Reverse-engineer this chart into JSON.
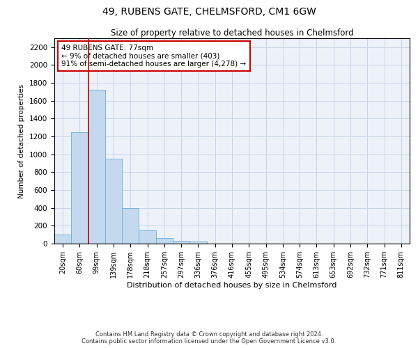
{
  "title_line1": "49, RUBENS GATE, CHELMSFORD, CM1 6GW",
  "title_line2": "Size of property relative to detached houses in Chelmsford",
  "xlabel": "Distribution of detached houses by size in Chelmsford",
  "ylabel": "Number of detached properties",
  "categories": [
    "20sqm",
    "60sqm",
    "99sqm",
    "139sqm",
    "178sqm",
    "218sqm",
    "257sqm",
    "297sqm",
    "336sqm",
    "376sqm",
    "416sqm",
    "455sqm",
    "495sqm",
    "534sqm",
    "574sqm",
    "613sqm",
    "653sqm",
    "692sqm",
    "732sqm",
    "771sqm",
    "811sqm"
  ],
  "values": [
    100,
    1250,
    1720,
    950,
    400,
    150,
    60,
    35,
    20,
    0,
    0,
    0,
    0,
    0,
    0,
    0,
    0,
    0,
    0,
    0,
    0
  ],
  "bar_color": "#c5d9ee",
  "bar_edge_color": "#6aaed6",
  "vline_color": "#cc0000",
  "annotation_text": "49 RUBENS GATE: 77sqm\n← 9% of detached houses are smaller (403)\n91% of semi-detached houses are larger (4,278) →",
  "annotation_box_facecolor": "#ffffff",
  "annotation_box_edgecolor": "#cc0000",
  "ylim": [
    0,
    2300
  ],
  "yticks": [
    0,
    200,
    400,
    600,
    800,
    1000,
    1200,
    1400,
    1600,
    1800,
    2000,
    2200
  ],
  "grid_color": "#c8d4e8",
  "background_color": "#edf2f9",
  "footer_line1": "Contains HM Land Registry data © Crown copyright and database right 2024.",
  "footer_line2": "Contains public sector information licensed under the Open Government Licence v3.0."
}
